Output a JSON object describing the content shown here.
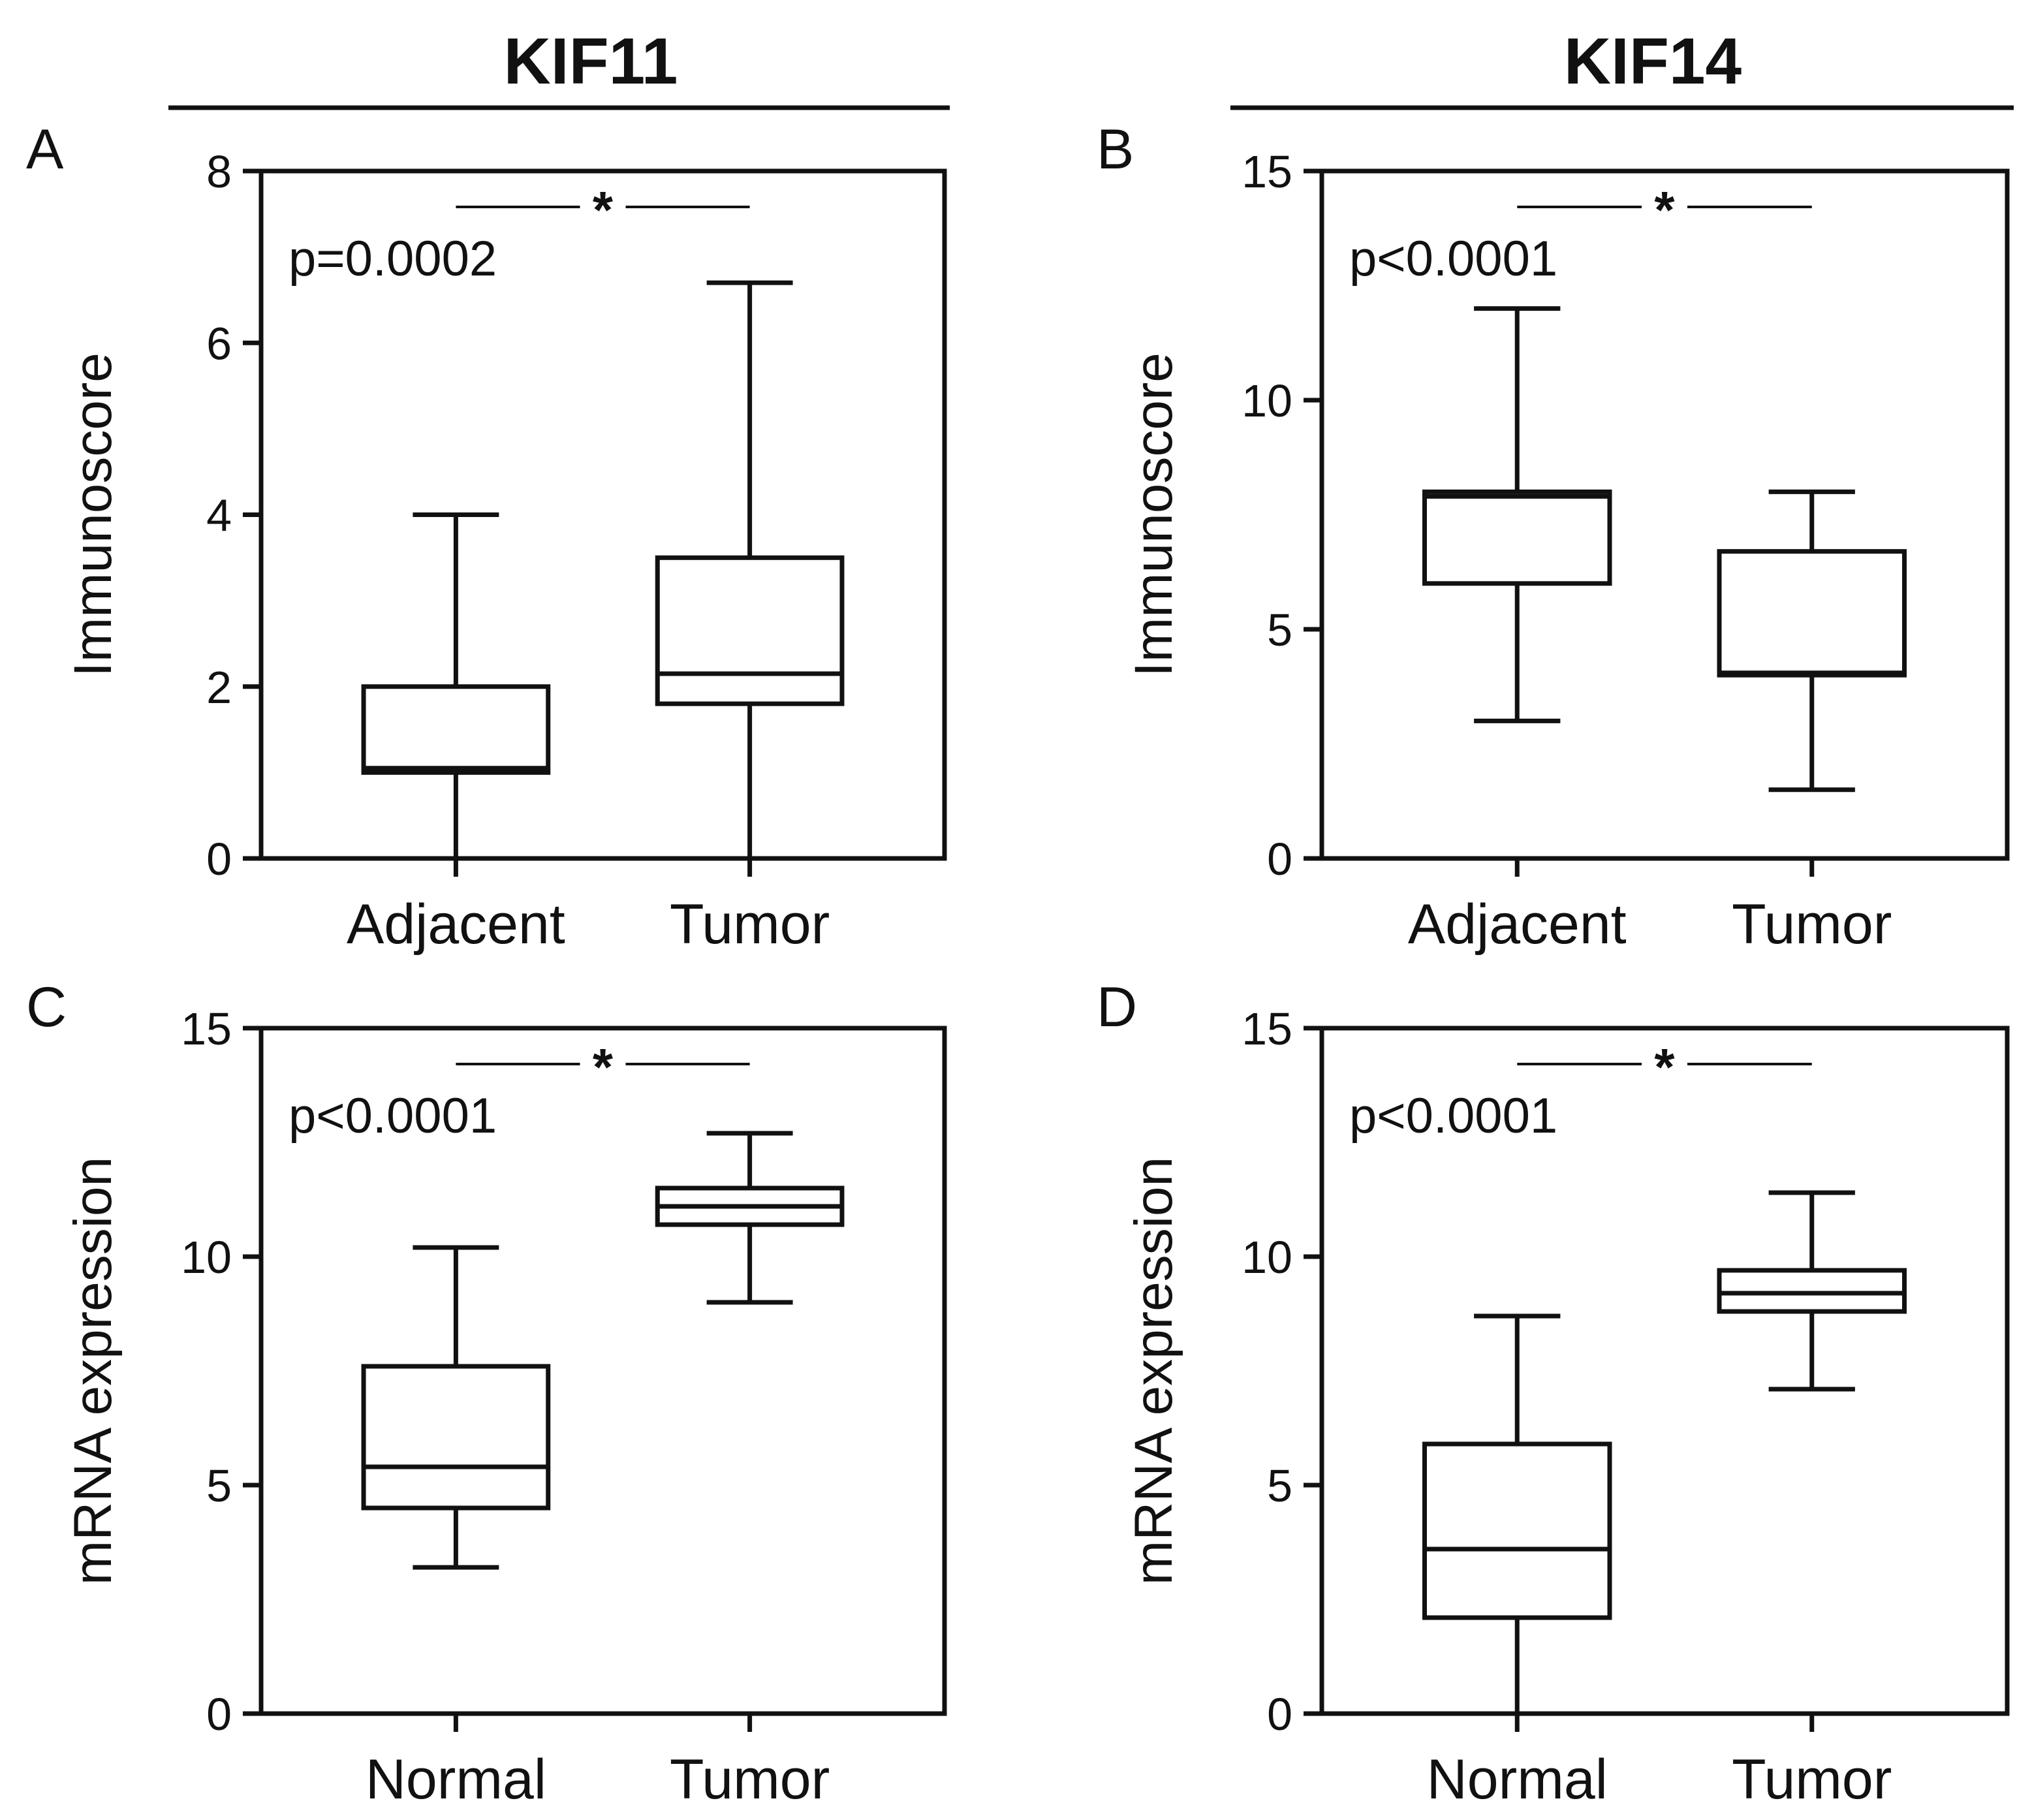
{
  "figure": {
    "column_titles": [
      "KIF11",
      "KIF14"
    ]
  },
  "chart_data": [
    {
      "type": "boxplot",
      "panel": "A",
      "gene": "KIF11",
      "ylabel": "Immunoscore",
      "ylim": [
        0,
        8
      ],
      "yticks": [
        0,
        2,
        4,
        6,
        8
      ],
      "ytick_labels": [
        "0",
        "2",
        "4",
        "6",
        "8"
      ],
      "categories": [
        "Adjacent",
        "Tumor"
      ],
      "boxes": [
        {
          "min": 0,
          "q1": 1.0,
          "median": 1.05,
          "q3": 2.0,
          "max": 4.0
        },
        {
          "min": 0,
          "q1": 1.8,
          "median": 2.15,
          "q3": 3.5,
          "max": 6.7
        }
      ],
      "pvalue": "p=0.0002",
      "significance": "*"
    },
    {
      "type": "boxplot",
      "panel": "B",
      "gene": "KIF14",
      "ylabel": "Immunoscore",
      "ylim": [
        0,
        15
      ],
      "yticks": [
        0,
        5,
        10,
        15
      ],
      "ytick_labels": [
        "0",
        "5",
        "10",
        "15"
      ],
      "categories": [
        "Adjacent",
        "Tumor"
      ],
      "boxes": [
        {
          "min": 3.0,
          "q1": 6.0,
          "median": 7.9,
          "q3": 8.0,
          "max": 12.0
        },
        {
          "min": 1.5,
          "q1": 4.0,
          "median": 4.05,
          "q3": 6.7,
          "max": 8.0
        }
      ],
      "pvalue": "p<0.0001",
      "significance": "*"
    },
    {
      "type": "boxplot",
      "panel": "C",
      "gene": "KIF11",
      "ylabel": "mRNA expression",
      "ylim": [
        0,
        15
      ],
      "yticks": [
        0,
        5,
        10,
        15
      ],
      "ytick_labels": [
        "0",
        "5",
        "10",
        "15"
      ],
      "categories": [
        "Normal",
        "Tumor"
      ],
      "boxes": [
        {
          "min": 3.2,
          "q1": 4.5,
          "median": 5.4,
          "q3": 7.6,
          "max": 10.2
        },
        {
          "min": 9.0,
          "q1": 10.7,
          "median": 11.1,
          "q3": 11.5,
          "max": 12.7
        }
      ],
      "pvalue": "p<0.0001",
      "significance": "*"
    },
    {
      "type": "boxplot",
      "panel": "D",
      "gene": "KIF14",
      "ylabel": "mRNA expression",
      "ylim": [
        0,
        15
      ],
      "yticks": [
        0,
        5,
        10,
        15
      ],
      "ytick_labels": [
        "0",
        "5",
        "10",
        "15"
      ],
      "categories": [
        "Normal",
        "Tumor"
      ],
      "boxes": [
        {
          "min": 0,
          "q1": 2.1,
          "median": 3.6,
          "q3": 5.9,
          "max": 8.7
        },
        {
          "min": 7.1,
          "q1": 8.8,
          "median": 9.2,
          "q3": 9.7,
          "max": 11.4
        }
      ],
      "pvalue": "p<0.0001",
      "significance": "*"
    }
  ]
}
